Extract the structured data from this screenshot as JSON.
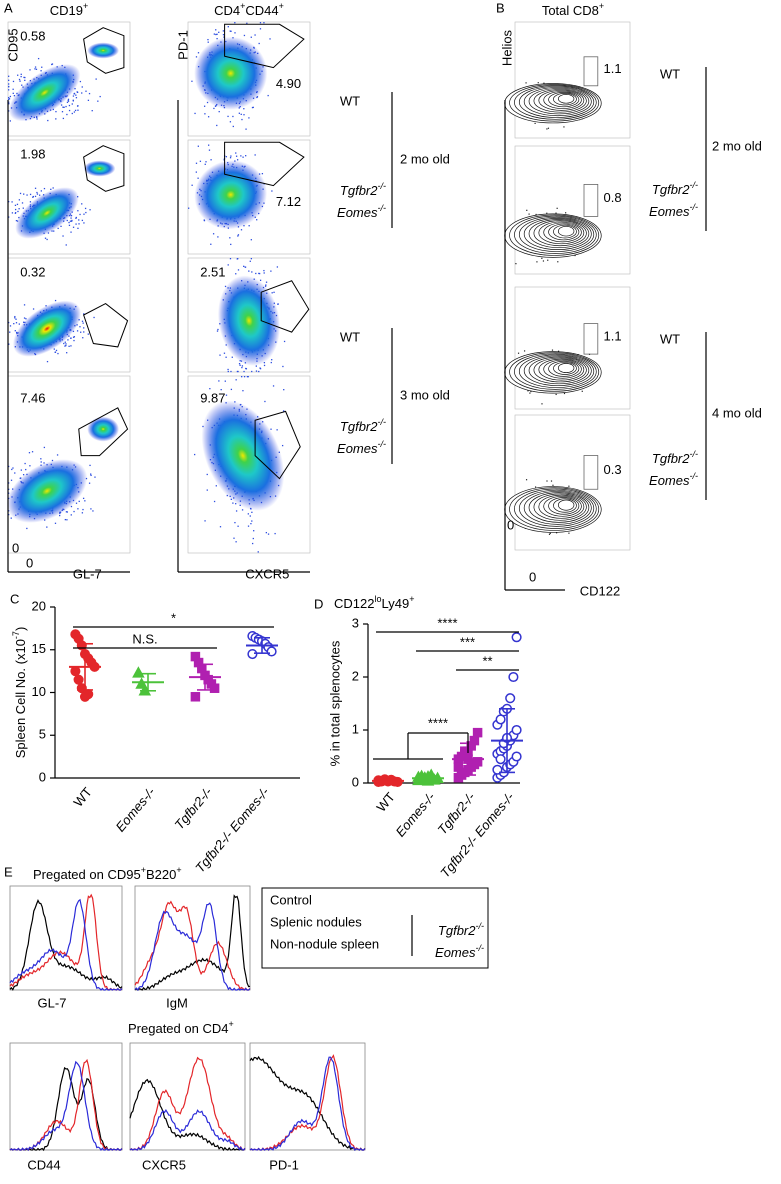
{
  "genotypes": {
    "wt": "WT",
    "tgfbr2": "Tgfbr2",
    "eomes": "Eomes",
    "ko": "-/-"
  },
  "panel_a": {
    "label": "A",
    "ages": [
      "2 mo old",
      "3 mo old"
    ],
    "columns": [
      {
        "title": "CD19",
        "title_sup": "+",
        "y_axis": "CD95",
        "x_axis": "GL-7",
        "origin_x": "0",
        "origin_y": "0",
        "gates": [
          "0.58",
          "1.98",
          "0.32",
          "7.46"
        ]
      },
      {
        "title": "CD4",
        "title_sup": "+",
        "title2": "CD44",
        "title2_sup": "+",
        "y_axis": "PD-1",
        "x_axis": "CXCR5",
        "gates": [
          "4.90",
          "7.12",
          "2.51",
          "9.87"
        ]
      }
    ]
  },
  "panel_b": {
    "label": "B",
    "title": "Total CD8",
    "title_sup": "+",
    "y_axis": "Helios",
    "x_axis": "CD122",
    "origin_x": "0",
    "origin_y": "0",
    "gates": [
      "1.1",
      "0.8",
      "1.1",
      "0.3"
    ],
    "ages": [
      "2 mo old",
      "4 mo old"
    ]
  },
  "chart_data": [
    {
      "type": "strip",
      "panel": "C",
      "y_label": "Spleen Cell No. (x10",
      "y_label_sup": "-7",
      "y_label_end": ")",
      "categories": [
        "WT",
        "Eomes-/-",
        "Tgfbr2-/-",
        "Tgfbr2-/- Eomes-/-"
      ],
      "series": [
        {
          "color": "#e3262a",
          "marker": "circle",
          "filled": true,
          "values": [
            16.8,
            16.3,
            15.5,
            14.5,
            14,
            13.5,
            13,
            12.5,
            11.5,
            10.5,
            9.5,
            9.8
          ],
          "mean": 13,
          "sd": 2.7
        },
        {
          "color": "#4cc23a",
          "marker": "triangle",
          "filled": true,
          "values": [
            12.3,
            11,
            10.2
          ],
          "mean": 11.2,
          "sd": 1
        },
        {
          "color": "#b020b0",
          "marker": "square",
          "filled": true,
          "values": [
            14.2,
            13.5,
            12.8,
            12,
            11.5,
            11,
            10.5,
            9.5
          ],
          "mean": 11.8,
          "sd": 1.5
        },
        {
          "color": "#3434d0",
          "marker": "circle",
          "filled": false,
          "values": [
            16.6,
            16.4,
            16.2,
            16,
            15.7,
            15.3,
            14.8,
            14.5
          ],
          "mean": 15.5,
          "sd": 0.9
        }
      ],
      "ylim": [
        0,
        20
      ],
      "yticks": [
        0,
        5,
        10,
        15,
        20
      ],
      "comparisons": [
        {
          "text": "*",
          "from": 0,
          "to": 3
        },
        {
          "text": "N.S.",
          "from": 0,
          "to": 2
        }
      ]
    },
    {
      "type": "strip",
      "panel": "D",
      "title": "CD122",
      "title_sup": "lo",
      "title2": "Ly49",
      "title2_sup": "+",
      "y_label": "% in total splenocytes",
      "categories": [
        "WT",
        "Eomes-/-",
        "Tgfbr2-/-",
        "Tgfbr2-/- Eomes-/-"
      ],
      "series": [
        {
          "color": "#e3262a",
          "marker": "circle",
          "filled": true,
          "values": [
            0.02,
            0.03,
            0.05,
            0.04,
            0.06,
            0.03,
            0.02,
            0.05,
            0.04,
            0.07,
            0.03,
            0.05
          ],
          "mean": 0.04,
          "sd": 0.02
        },
        {
          "color": "#4cc23a",
          "marker": "triangle",
          "filled": true,
          "values": [
            0.05,
            0.08,
            0.1,
            0.12,
            0.15,
            0.06,
            0.09,
            0.11,
            0.13,
            0.07,
            0.04,
            0.1
          ],
          "mean": 0.09,
          "sd": 0.04
        },
        {
          "color": "#b020b0",
          "marker": "square",
          "filled": true,
          "values": [
            0.1,
            0.15,
            0.2,
            0.25,
            0.3,
            0.35,
            0.4,
            0.45,
            0.5,
            0.55,
            0.6,
            0.7,
            0.8,
            0.95,
            0.3,
            0.2,
            0.6,
            0.45
          ],
          "mean": 0.45,
          "sd": 0.3
        },
        {
          "color": "#3434d0",
          "marker": "circle",
          "filled": false,
          "values": [
            0.1,
            0.15,
            0.2,
            0.3,
            0.35,
            0.4,
            0.5,
            0.55,
            0.6,
            0.65,
            0.7,
            0.8,
            0.9,
            1.0,
            1.1,
            1.2,
            1.35,
            1.4,
            1.6,
            2.0,
            2.75,
            0.25,
            0.45,
            0.75,
            0.85
          ],
          "mean": 0.8,
          "sd": 0.6
        }
      ],
      "ylim": [
        0,
        3
      ],
      "yticks": [
        0,
        1,
        2,
        3
      ],
      "comparisons": [
        {
          "text": "****",
          "from": 0,
          "to": 3
        },
        {
          "text": "***",
          "from": 1,
          "to": 3
        },
        {
          "text": "**",
          "from": 2,
          "to": 3
        }
      ],
      "bracket": {
        "text": "****",
        "from": [
          0,
          1
        ],
        "to": 2
      }
    }
  ],
  "panel_e": {
    "label": "E",
    "top_title": "Pregated on CD95",
    "top_sup": "+",
    "top_title2": "B220",
    "top_sup2": "+",
    "top_axes": [
      "GL-7",
      "IgM"
    ],
    "bottom_title": "Pregated on CD4",
    "bottom_sup": "+",
    "bottom_axes": [
      "CD44",
      "CXCR5",
      "PD-1"
    ],
    "legend": [
      {
        "text": "Control",
        "color": "#000000"
      },
      {
        "text": "Splenic nodules",
        "color": "#e3262a"
      },
      {
        "text": "Non-nodule spleen",
        "color": "#2b2bd8"
      }
    ]
  }
}
